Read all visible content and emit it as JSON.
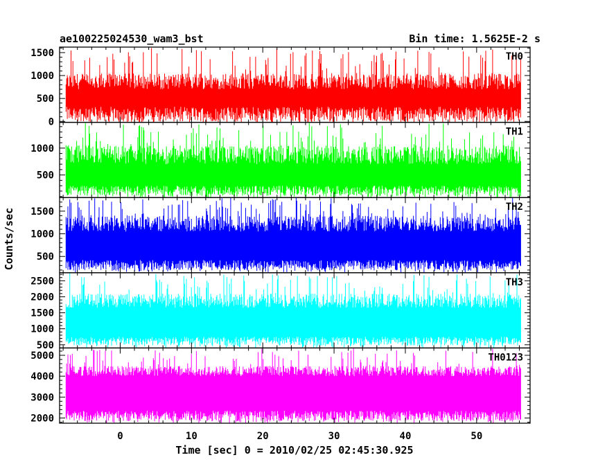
{
  "chart_data": {
    "type": "line",
    "title": "ae100225024530_wam3_bst",
    "subtitle": "Bin time: 1.5625E-2 s",
    "xlabel": "Time [sec] 0 = 2010/02/25 02:45:30.925",
    "ylabel": "Counts/sec",
    "xlim": [
      -8.5,
      57.5
    ],
    "x_data_range": [
      -7.6,
      56.2
    ],
    "bin_time": 0.015625,
    "xticks": [
      0,
      10,
      20,
      30,
      40,
      50
    ],
    "panels": [
      {
        "name": "TH0",
        "color": "#ff0000",
        "ylim": [
          -20,
          1620
        ],
        "yticks": [
          0,
          500,
          1000,
          1500
        ],
        "band_low": [
          0,
          320
        ],
        "band_high": [
          700,
          1050
        ],
        "spike_max": 1620
      },
      {
        "name": "TH1",
        "color": "#00ff00",
        "ylim": [
          80,
          1480
        ],
        "yticks": [
          500,
          1000
        ],
        "band_low": [
          110,
          300
        ],
        "band_high": [
          700,
          1050
        ],
        "spike_max": 1480
      },
      {
        "name": "TH2",
        "color": "#0000ff",
        "ylim": [
          140,
          1800
        ],
        "yticks": [
          500,
          1000,
          1500
        ],
        "band_low": [
          200,
          420
        ],
        "band_high": [
          1050,
          1400
        ],
        "spike_max": 1800
      },
      {
        "name": "TH3",
        "color": "#00ffff",
        "ylim": [
          400,
          2750
        ],
        "yticks": [
          500,
          1000,
          1500,
          2000,
          2500
        ],
        "band_low": [
          480,
          750
        ],
        "band_high": [
          1650,
          2100
        ],
        "spike_max": 2750
      },
      {
        "name": "TH0123",
        "color": "#ff00ff",
        "ylim": [
          1750,
          5350
        ],
        "yticks": [
          2000,
          3000,
          4000,
          5000
        ],
        "band_low": [
          1850,
          2350
        ],
        "band_high": [
          4000,
          4500
        ],
        "spike_max": 5350
      }
    ]
  }
}
